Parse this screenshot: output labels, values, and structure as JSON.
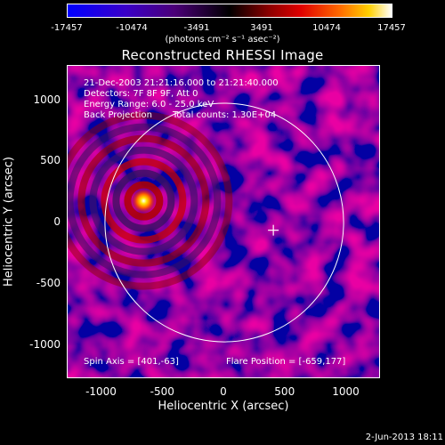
{
  "colorbar": {
    "ticks": [
      "-17457",
      "-10474",
      "-3491",
      "3491",
      "10474",
      "17457"
    ],
    "units": "(photons cm⁻² s⁻¹ asec⁻²)"
  },
  "chart_data": {
    "type": "heatmap",
    "title": "Reconstructed RHESSI Image",
    "xlabel": "Heliocentric X (arcsec)",
    "ylabel": "Heliocentric Y (arcsec)",
    "xlim": [
      -1280,
      1280
    ],
    "ylim": [
      -1280,
      1280
    ],
    "x_ticks": [
      "-1000",
      "-500",
      "0",
      "500",
      "1000"
    ],
    "y_ticks": [
      "1000",
      "500",
      "0",
      "-500",
      "-1000"
    ],
    "x_tick_values": [
      -1000,
      -500,
      0,
      500,
      1000
    ],
    "y_tick_values": [
      1000,
      500,
      0,
      -500,
      -1000
    ],
    "value_range": [
      -17457,
      17457
    ],
    "flare_position": [
      -659,
      177
    ],
    "spin_axis": [
      401,
      -63
    ],
    "sun_center": [
      0,
      0
    ],
    "sun_radius": 975
  },
  "annotations": {
    "time": "21-Dec-2003 21:21:16.000 to 21:21:40.000",
    "detectors": "Detectors: 7F 8F 9F, Att 0",
    "energy": "Energy Range: 6.0 - 25.0 keV",
    "method": "Back Projection",
    "counts": "Total counts: 1.30E+04",
    "spin_axis": "Spin Axis = [401,-63]",
    "flare_position": "Flare Position = [-659,177]"
  },
  "timestamp": "2-Jun-2013 18:11",
  "colors": {
    "background": "#000000",
    "foreground": "#ffffff"
  }
}
